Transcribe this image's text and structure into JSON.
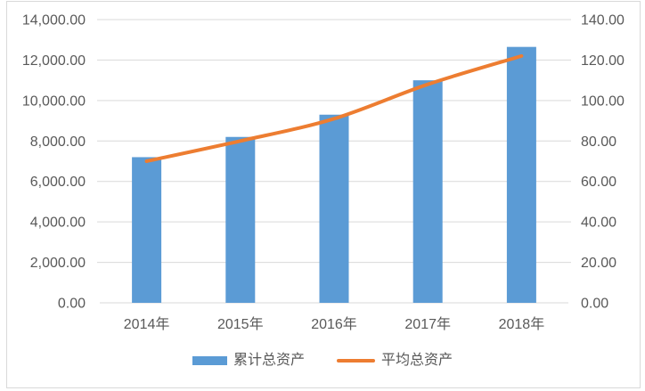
{
  "chart_data": {
    "type": "bar",
    "subtype": "combo-bar-line",
    "title": "",
    "categories": [
      "2014年",
      "2015年",
      "2016年",
      "2017年",
      "2018年"
    ],
    "series": [
      {
        "name": "累计总资产",
        "type": "bar",
        "axis": "left",
        "color": "#5B9BD5",
        "values": [
          7200,
          8200,
          9300,
          11000,
          12650
        ]
      },
      {
        "name": "平均总资产",
        "type": "line",
        "axis": "right",
        "color": "#ED7D31",
        "values": [
          70,
          80,
          91,
          108,
          122
        ]
      }
    ],
    "left_axis": {
      "min": 0,
      "max": 14000,
      "tick_labels": [
        "0.00",
        "2,000.00",
        "4,000.00",
        "6,000.00",
        "8,000.00",
        "10,000.00",
        "12,000.00",
        "14,000.00"
      ]
    },
    "right_axis": {
      "min": 0,
      "max": 140,
      "tick_labels": [
        "0.00",
        "20.00",
        "40.00",
        "60.00",
        "80.00",
        "100.00",
        "120.00",
        "140.00"
      ]
    },
    "grid": true,
    "smooth_line": true,
    "legend_position": "bottom"
  },
  "legend": {
    "items": [
      {
        "label": "累计总资产",
        "marker": "bar-swatch"
      },
      {
        "label": "平均总资产",
        "marker": "line-swatch"
      }
    ]
  },
  "colors": {
    "bar": "#5B9BD5",
    "line": "#ED7D31",
    "grid": "#D9D9D9",
    "axis_line": "#D9D9D9",
    "text": "#595959",
    "frame": "#D9D9D9",
    "background": "#FFFFFF"
  }
}
